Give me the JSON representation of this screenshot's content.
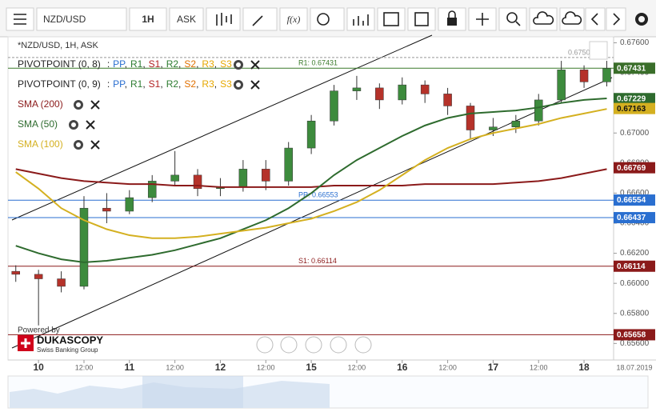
{
  "toolbar": {
    "symbol": "NZD/USD",
    "period": "1H",
    "side": "ASK"
  },
  "legend": {
    "instrument": "*NZD/USD, 1H, ASK",
    "prefix": ":",
    "separator": ",",
    "pivots": [
      "PIVOTPOINT (0, 8)",
      "PIVOTPOINT (0, 9)"
    ],
    "pivot_items": [
      {
        "text": "PP",
        "color": "#2a6fd0"
      },
      {
        "text": "R1",
        "color": "#2e7d32"
      },
      {
        "text": "S1",
        "color": "#b22222"
      },
      {
        "text": "R2",
        "color": "#2e7d32"
      },
      {
        "text": "S2",
        "color": "#e07000"
      },
      {
        "text": "R3",
        "color": "#e6a800"
      },
      {
        "text": "S3",
        "color": "#e6a800"
      }
    ]
  },
  "branding": {
    "powered": "Powered by",
    "name": "DUKASCOPY",
    "tagline": "Swiss Banking Group"
  },
  "chart_data": {
    "type": "candlestick",
    "date_label": "18.07.2019",
    "x": [
      -6,
      0,
      6,
      12,
      18,
      24,
      30,
      36,
      42,
      48,
      54,
      60,
      66,
      72,
      78,
      84,
      90,
      96,
      102,
      108,
      114,
      120,
      126,
      132,
      138,
      144,
      150
    ],
    "open": [
      0.6608,
      0.6606,
      0.6603,
      0.6598,
      0.665,
      0.6648,
      0.6657,
      0.6668,
      0.6672,
      0.6663,
      0.6664,
      0.6676,
      0.6668,
      0.669,
      0.6708,
      0.6728,
      0.673,
      0.6722,
      0.6732,
      0.6726,
      0.6718,
      0.6702,
      0.6704,
      0.6708,
      0.6722,
      0.6742,
      0.6734
    ],
    "high": [
      0.6612,
      0.6609,
      0.6608,
      0.6658,
      0.666,
      0.6662,
      0.6672,
      0.6688,
      0.6676,
      0.667,
      0.6682,
      0.6682,
      0.6694,
      0.6712,
      0.6732,
      0.6738,
      0.6733,
      0.6737,
      0.6735,
      0.673,
      0.672,
      0.671,
      0.6712,
      0.6726,
      0.6748,
      0.6745,
      0.6748
    ],
    "low": [
      0.6601,
      0.6572,
      0.6594,
      0.6596,
      0.664,
      0.6646,
      0.6654,
      0.6665,
      0.6658,
      0.6658,
      0.6661,
      0.6662,
      0.6665,
      0.6686,
      0.6705,
      0.6722,
      0.6716,
      0.6719,
      0.672,
      0.6712,
      0.6696,
      0.6698,
      0.67,
      0.6705,
      0.672,
      0.673,
      0.6731
    ],
    "close": [
      0.6606,
      0.6603,
      0.6598,
      0.665,
      0.6648,
      0.6657,
      0.6668,
      0.6672,
      0.6663,
      0.6664,
      0.6676,
      0.6668,
      0.669,
      0.6708,
      0.6728,
      0.673,
      0.6722,
      0.6732,
      0.6726,
      0.6718,
      0.6702,
      0.6704,
      0.6708,
      0.6722,
      0.6742,
      0.6734,
      0.6743
    ],
    "up_color": "#3d8b3d",
    "down_color": "#b5322a",
    "series": [
      {
        "name": "SMA (200)",
        "color": "#8b1a1a",
        "values": [
          0.6676,
          0.6673,
          0.667,
          0.6668,
          0.6667,
          0.6666,
          0.6666,
          0.6665,
          0.6665,
          0.6664,
          0.6664,
          0.6664,
          0.6664,
          0.6664,
          0.6665,
          0.6665,
          0.6665,
          0.6665,
          0.6666,
          0.6666,
          0.6666,
          0.6666,
          0.6667,
          0.6668,
          0.667,
          0.6673,
          0.6676
        ]
      },
      {
        "name": "SMA (50)",
        "color": "#2e6b2e",
        "values": [
          0.6625,
          0.662,
          0.6616,
          0.6614,
          0.6615,
          0.6617,
          0.6619,
          0.6622,
          0.6626,
          0.663,
          0.6636,
          0.6642,
          0.665,
          0.666,
          0.6672,
          0.6682,
          0.669,
          0.6698,
          0.6705,
          0.671,
          0.6713,
          0.6714,
          0.6715,
          0.6717,
          0.672,
          0.6722,
          0.6723
        ]
      },
      {
        "name": "SMA (100)",
        "color": "#d4b020",
        "values": [
          0.6674,
          0.6663,
          0.665,
          0.6642,
          0.6636,
          0.6632,
          0.663,
          0.663,
          0.6631,
          0.6633,
          0.6635,
          0.6637,
          0.664,
          0.6643,
          0.6648,
          0.6654,
          0.6662,
          0.6672,
          0.6682,
          0.669,
          0.6696,
          0.67,
          0.6703,
          0.6706,
          0.671,
          0.6713,
          0.6716
        ]
      }
    ],
    "levels": [
      {
        "value": 0.67502,
        "label": "0.67502",
        "color": "#999999"
      },
      {
        "value": 0.67431,
        "label": "R1: 0.67431",
        "color": "#3a7a2a"
      },
      {
        "value": 0.66553,
        "label": "PP: 0.66553",
        "color": "#2a6fd0"
      },
      {
        "value": 0.66437,
        "color": "#2a6fd0"
      },
      {
        "value": 0.66114,
        "label": "S1: 0.66114",
        "color": "#8b1a1a"
      },
      {
        "value": 0.65658,
        "color": "#8b1a1a"
      }
    ],
    "price_tags": [
      {
        "value": 0.67431,
        "color": "#3a6e2a"
      },
      {
        "value": 0.67229,
        "color": "#2e6b2e"
      },
      {
        "value": 0.67163,
        "color": "#d4b020"
      },
      {
        "value": 0.66769,
        "color": "#8b1a1a"
      },
      {
        "value": 0.66554,
        "color": "#2a6fd0"
      },
      {
        "value": 0.66437,
        "color": "#2a6fd0"
      },
      {
        "value": 0.66114,
        "color": "#8b1a1a"
      },
      {
        "value": 0.65658,
        "color": "#8b1a1a"
      }
    ],
    "xlim": [
      -7,
      151.8
    ],
    "xticks": [
      {
        "value": 0,
        "label": "10"
      },
      {
        "value": 12,
        "label": "12:00"
      },
      {
        "value": 24,
        "label": "11"
      },
      {
        "value": 36,
        "label": "12:00"
      },
      {
        "value": 48,
        "label": "12"
      },
      {
        "value": 60,
        "label": "12:00"
      },
      {
        "value": 72,
        "label": "15"
      },
      {
        "value": 84,
        "label": "12:00"
      },
      {
        "value": 96,
        "label": "16"
      },
      {
        "value": 108,
        "label": "12:00"
      },
      {
        "value": 120,
        "label": "17"
      },
      {
        "value": 132,
        "label": "12:00"
      },
      {
        "value": 144,
        "label": "18"
      }
    ],
    "ylim": [
      0.6549,
      0.6764
    ],
    "yticks": [
      {
        "value": 0.676,
        "label": "0.67600"
      },
      {
        "value": 0.674,
        "label": "0.67400"
      },
      {
        "value": 0.672,
        "label": "0.67200"
      },
      {
        "value": 0.67,
        "label": "0.67000"
      },
      {
        "value": 0.668,
        "label": "0.66800"
      },
      {
        "value": 0.666,
        "label": "0.66600"
      },
      {
        "value": 0.664,
        "label": "0.66400"
      },
      {
        "value": 0.662,
        "label": "0.66200"
      },
      {
        "value": 0.66,
        "label": "0.66000"
      },
      {
        "value": 0.658,
        "label": "0.65800"
      },
      {
        "value": 0.656,
        "label": "0.65600"
      }
    ]
  }
}
